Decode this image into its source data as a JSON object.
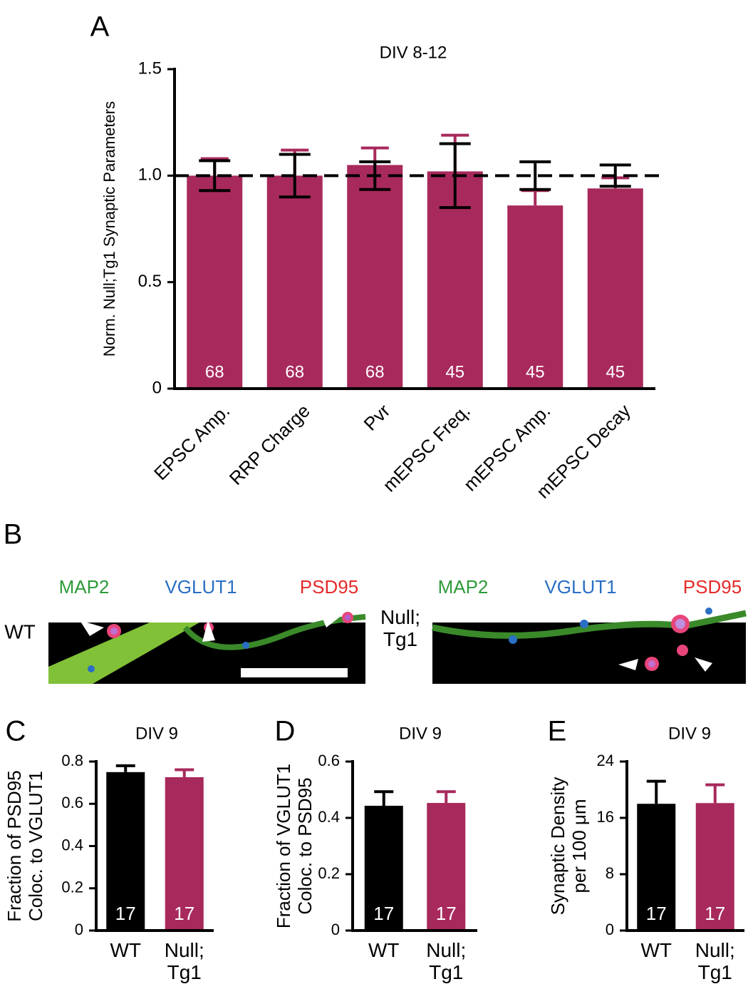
{
  "chart_data": [
    {
      "type": "bar",
      "panel_label": "A",
      "title": "DIV 8-12",
      "ylabel": [
        "Norm. Null;Tg1 Synaptic Parameters"
      ],
      "categories": [
        "EPSC Amp.",
        "RRP Charge",
        "Pvr",
        "mEPSC Freq.",
        "mEPSC Amp.",
        "mEPSC Decay"
      ],
      "values": [
        1.0,
        1.0,
        1.05,
        1.02,
        0.86,
        0.94
      ],
      "errors": [
        0.08,
        0.12,
        0.08,
        0.17,
        0.07,
        0.05
      ],
      "n": [
        68,
        68,
        68,
        45,
        45,
        45
      ],
      "color": "#a8295c",
      "reference_line": 1,
      "reference_errors": [
        0.07,
        0.1,
        0.065,
        0.15,
        0.065,
        0.05
      ],
      "reference_color": "#000000",
      "ylim": [
        0,
        1.5
      ],
      "yticks": [
        0,
        0.5,
        {
          "value": 1,
          "label": "1.0"
        },
        1.5
      ]
    },
    {
      "type": "bar",
      "panel_label": "C",
      "title": "DIV 9",
      "ylabel": [
        "Fraction of PSD95",
        "Coloc. to VGLUT1"
      ],
      "categories": [
        "WT",
        "Null; Tg1"
      ],
      "values": [
        0.75,
        0.726
      ],
      "errors": [
        0.03,
        0.035
      ],
      "n": [
        17,
        17
      ],
      "colors": [
        "#000000",
        "#a8295c"
      ],
      "ylim": [
        0,
        0.8
      ],
      "yticks": [
        0,
        0.2,
        0.4,
        0.6,
        0.8
      ]
    },
    {
      "type": "bar",
      "panel_label": "D",
      "title": "DIV 9",
      "ylabel": [
        "Fraction of VGLUT1",
        "Coloc. to PSD95"
      ],
      "categories": [
        "WT",
        "Null; Tg1"
      ],
      "values": [
        0.443,
        0.453
      ],
      "errors": [
        0.05,
        0.04
      ],
      "n": [
        17,
        17
      ],
      "colors": [
        "#000000",
        "#a8295c"
      ],
      "ylim": [
        0,
        0.6
      ],
      "yticks": [
        0,
        0.2,
        0.4,
        0.6
      ]
    },
    {
      "type": "bar",
      "panel_label": "E",
      "title": "DIV 9",
      "ylabel": [
        "Synaptic Density",
        "per 100 μm"
      ],
      "categories": [
        "WT",
        "Null; Tg1"
      ],
      "values": [
        18.0,
        18.1
      ],
      "errors": [
        3.2,
        2.6
      ],
      "n": [
        17,
        17
      ],
      "colors": [
        "#000000",
        "#a8295c"
      ],
      "ylim": [
        0,
        24
      ],
      "yticks": [
        0,
        8,
        16,
        24
      ]
    }
  ],
  "panel_b": {
    "panel_label": "B",
    "channel_colors": [
      "#2e9a3a",
      "#2a6fc4",
      "#e52a2a"
    ],
    "left": {
      "channels": [
        "MAP2",
        "VGLUT1",
        "PSD95"
      ],
      "row_label": "WT"
    },
    "right": {
      "channels": [
        "MAP2",
        "VGLUT1",
        "PSD95"
      ],
      "row_label": "Null; Tg1"
    }
  }
}
